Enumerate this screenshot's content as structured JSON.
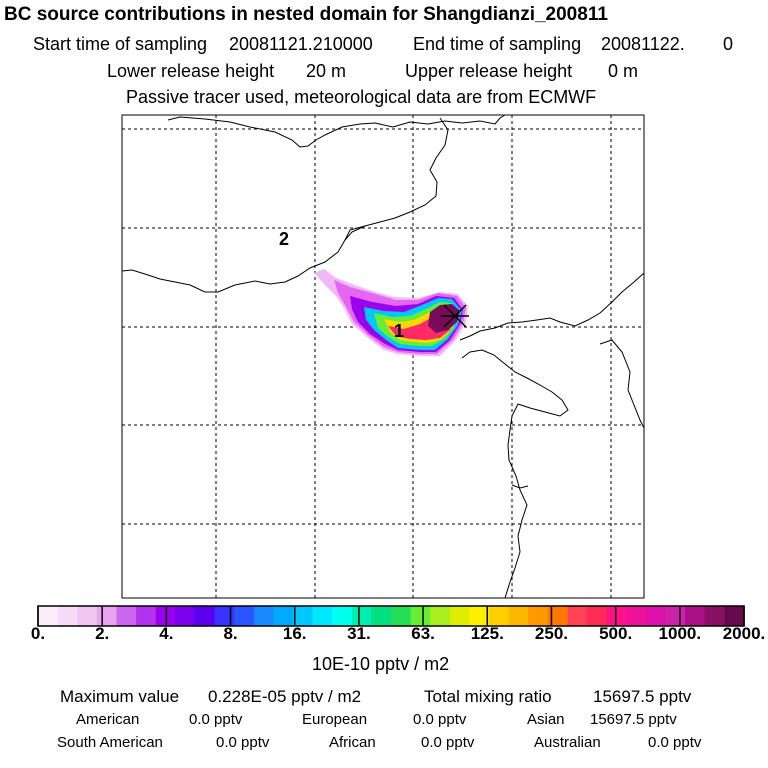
{
  "header": {
    "title": "BC  source contributions in nested domain for Shangdianzi_200811",
    "start_label": "Start time of sampling",
    "start_value": "20081121.210000",
    "end_label": "End time of sampling",
    "end_value": "20081122.",
    "end_value2": "0",
    "lower_label": "Lower release height",
    "lower_value": "20 m",
    "upper_label": "Upper release height",
    "upper_value": "0 m",
    "note": "Passive tracer used, meteorological data are from ECMWF"
  },
  "map": {
    "markers": [
      {
        "label": "1"
      },
      {
        "label": "2"
      }
    ],
    "plume_colors": [
      "#ee66ff",
      "#a000ff",
      "#00c8ff",
      "#66ff33",
      "#ffd800",
      "#ff2a66",
      "#7a0a5a"
    ]
  },
  "colorbar": {
    "unit": "10E-10 pptv / m2",
    "ticks": [
      "0.",
      "2.",
      "4.",
      "8.",
      "16.",
      "31.",
      "63.",
      "125.",
      "250.",
      "500.",
      "1000.",
      "2000."
    ],
    "colors": [
      "#fbeefb",
      "#f6dcf6",
      "#f0c6f0",
      "#e7a4ef",
      "#cc66ee",
      "#b233ee",
      "#9a00ee",
      "#7a00ee",
      "#5a00ee",
      "#3a33ff",
      "#2a55ff",
      "#1a88ff",
      "#00aaff",
      "#00c8ff",
      "#00e8ff",
      "#00ffee",
      "#00eeb0",
      "#00e080",
      "#22dd55",
      "#66ee33",
      "#aaee22",
      "#ddee00",
      "#ffee00",
      "#ffd000",
      "#ffb800",
      "#ff9900",
      "#ff7700",
      "#ff4455",
      "#ff2a55",
      "#ff1188",
      "#ee1199",
      "#dd11aa",
      "#cc22aa",
      "#aa1188",
      "#881166",
      "#660a4e"
    ]
  },
  "stats": {
    "max_label": "Maximum value",
    "max_value": "0.228E-05 pptv / m2",
    "total_label": "Total mixing ratio",
    "total_value": "15697.5 pptv"
  },
  "sources": [
    {
      "name": "American",
      "value": "0.0 pptv"
    },
    {
      "name": "European",
      "value": "0.0 pptv"
    },
    {
      "name": "Asian",
      "value": "15697.5 pptv"
    },
    {
      "name": "South American",
      "value": "0.0 pptv"
    },
    {
      "name": "African",
      "value": "0.0 pptv"
    },
    {
      "name": "Australian",
      "value": "0.0 pptv"
    }
  ]
}
